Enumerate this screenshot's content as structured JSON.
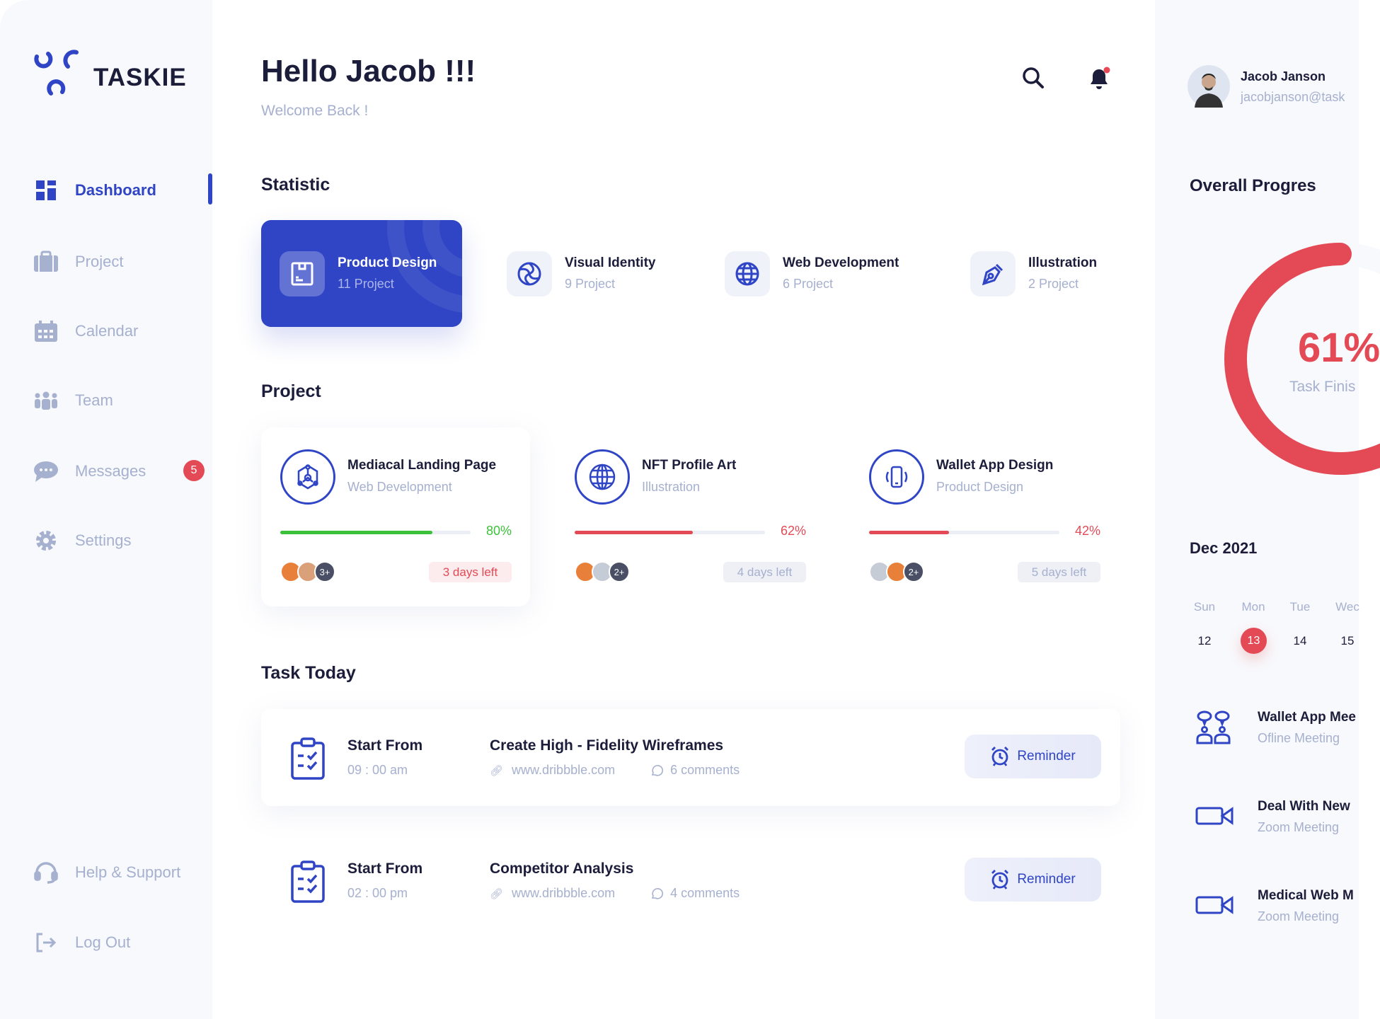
{
  "app": {
    "name": "TASKIE"
  },
  "sidebar": {
    "items": [
      {
        "label": "Dashboard",
        "icon": "dashboard-icon",
        "active": true
      },
      {
        "label": "Project",
        "icon": "briefcase-icon"
      },
      {
        "label": "Calendar",
        "icon": "calendar-icon"
      },
      {
        "label": "Team",
        "icon": "team-icon"
      },
      {
        "label": "Messages",
        "icon": "chat-icon",
        "badge": "5"
      },
      {
        "label": "Settings",
        "icon": "gear-icon"
      }
    ],
    "bottom": [
      {
        "label": "Help & Support",
        "icon": "headset-icon"
      },
      {
        "label": "Log Out",
        "icon": "logout-icon"
      }
    ]
  },
  "header": {
    "title": "Hello Jacob !!!",
    "subtitle": "Welcome Back !"
  },
  "statistic": {
    "heading": "Statistic",
    "cards": [
      {
        "title": "Product Design",
        "count": "11 Project",
        "selected": true
      },
      {
        "title": "Visual Identity",
        "count": "9 Project"
      },
      {
        "title": "Web Development",
        "count": "6 Project"
      },
      {
        "title": "Illustration",
        "count": "2 Project"
      }
    ]
  },
  "projects": {
    "heading": "Project",
    "items": [
      {
        "title": "Mediacal Landing Page",
        "category": "Web Development",
        "progress": 80,
        "progress_label": "80%",
        "color": "#3cc13b",
        "extra_members": "3+",
        "days_left": "3 days left",
        "urgent": true
      },
      {
        "title": "NFT Profile Art",
        "category": "Illustration",
        "progress": 62,
        "progress_label": "62%",
        "color": "#e44a55",
        "extra_members": "2+",
        "days_left": "4 days left"
      },
      {
        "title": "Wallet App Design",
        "category": "Product Design",
        "progress": 42,
        "progress_label": "42%",
        "color": "#e44a55",
        "extra_members": "2+",
        "days_left": "5 days left"
      }
    ]
  },
  "tasks": {
    "heading": "Task Today",
    "items": [
      {
        "start_label": "Start From",
        "time": "09 : 00 am",
        "title": "Create High - Fidelity Wireframes",
        "link": "www.dribbble.com",
        "comments": "6 comments",
        "button": "Reminder"
      },
      {
        "start_label": "Start From",
        "time": "02 : 00 pm",
        "title": "Competitor Analysis",
        "link": "www.dribbble.com",
        "comments": "4 comments",
        "button": "Reminder"
      }
    ]
  },
  "user": {
    "name": "Jacob Janson",
    "email": "jacobjanson@task"
  },
  "overall": {
    "heading": "Overall Progres",
    "value": 61,
    "value_label": "61%",
    "caption": "Task Finis"
  },
  "calendar": {
    "month": "Dec 2021",
    "weekdays": [
      "Sun",
      "Mon",
      "Tue",
      "Wec"
    ],
    "dates": [
      "12",
      "13",
      "14",
      "15"
    ],
    "selected": "13"
  },
  "meetings": [
    {
      "title": "Wallet App Mee",
      "type": "Ofline Meeting",
      "icon": "meeting-people-icon"
    },
    {
      "title": "Deal With New",
      "type": "Zoom Meeting",
      "icon": "video-camera-icon"
    },
    {
      "title": "Medical Web M",
      "type": "Zoom Meeting",
      "icon": "video-camera-icon"
    }
  ],
  "colors": {
    "accent": "#2f45c5",
    "red": "#e44a55",
    "green": "#3cc13b",
    "muted": "#a6b0cf",
    "text": "#1b1d3a"
  }
}
